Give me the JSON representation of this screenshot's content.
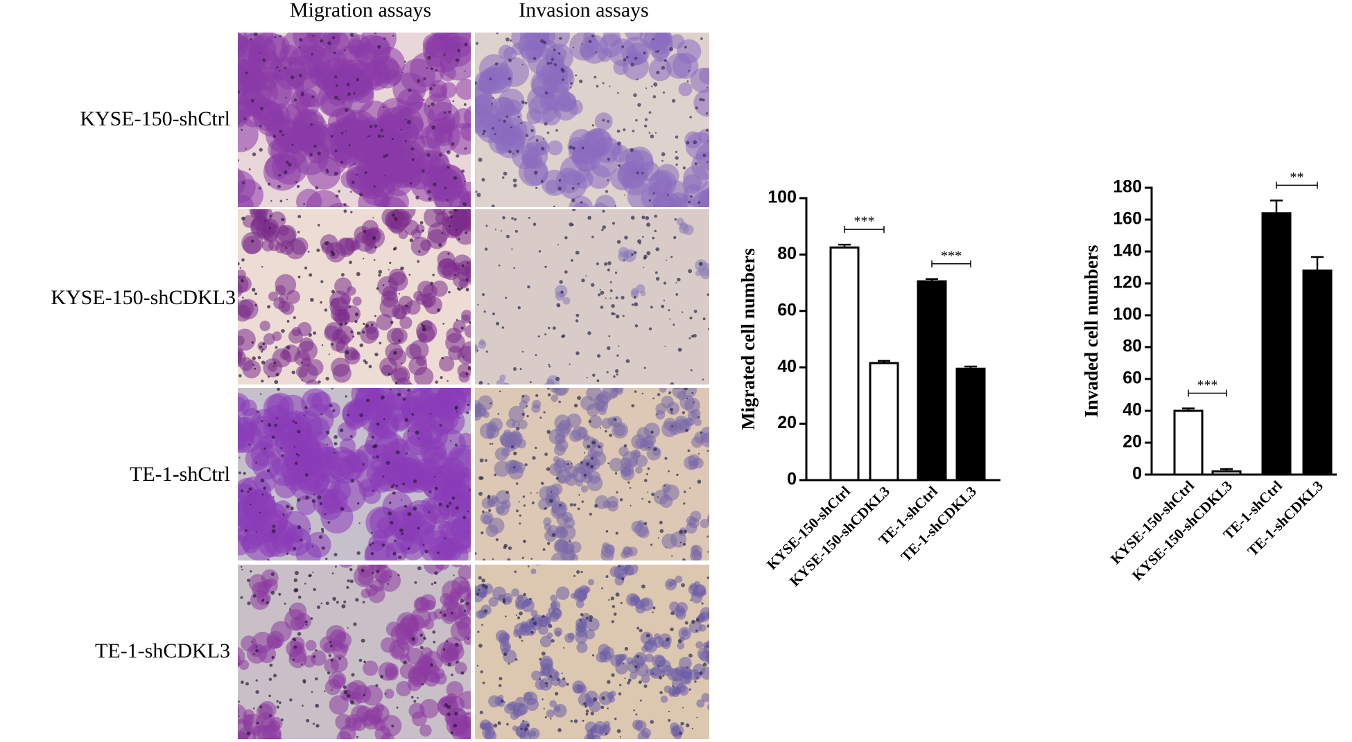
{
  "panels": {
    "columns": [
      "Migration assays",
      "Invasion assays"
    ],
    "rows": [
      "KYSE-150-shCtrl",
      "KYSE-150-shCDKL3",
      "TE-1-shCtrl",
      "TE-1-shCDKL3"
    ]
  },
  "chart_data": [
    {
      "type": "bar",
      "ylabel": "Migrated cell numbers",
      "categories": [
        "KYSE-150-shCtrl",
        "KYSE-150-shCDKL3",
        "TE-1-shCtrl",
        "TE-1-shCDKL3"
      ],
      "values": [
        82.5,
        41.5,
        70.5,
        39.5
      ],
      "errors": [
        1,
        0.8,
        0.8,
        0.8
      ],
      "colors": [
        "#ffffff",
        "#ffffff",
        "#000000",
        "#000000"
      ],
      "ylim": [
        0,
        100
      ],
      "yticks": [
        0,
        20,
        40,
        60,
        80,
        100
      ],
      "annotations": [
        "***",
        "***"
      ]
    },
    {
      "type": "bar",
      "ylabel": "Invaded cell numbers",
      "categories": [
        "KYSE-150-shCtrl",
        "KYSE-150-shCDKL3",
        "TE-1-shCtrl",
        "TE-1-shCDKL3"
      ],
      "values": [
        40,
        2,
        164,
        128
      ],
      "errors": [
        1.5,
        1.5,
        8,
        8.5
      ],
      "colors": [
        "#ffffff",
        "#ffffff",
        "#000000",
        "#000000"
      ],
      "ylim": [
        0,
        180
      ],
      "yticks": [
        0,
        20,
        40,
        60,
        80,
        100,
        120,
        140,
        160,
        180
      ],
      "annotations": [
        "***",
        "**"
      ]
    }
  ]
}
